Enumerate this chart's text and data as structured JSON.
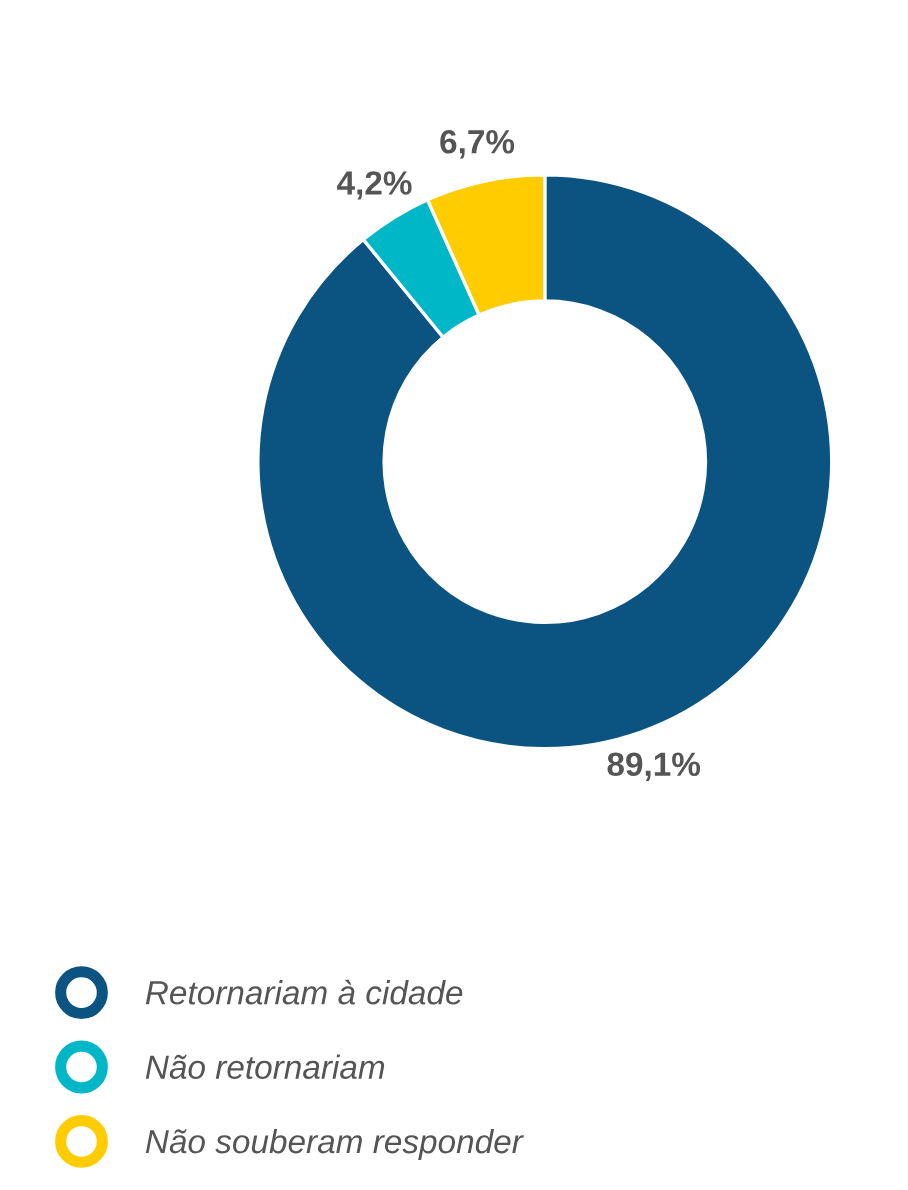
{
  "chart_data": {
    "type": "donut",
    "categories": [
      "Retornariam à cidade",
      "Não retornariam",
      "Não souberam responder"
    ],
    "values": [
      89.1,
      4.2,
      6.7
    ],
    "value_labels": [
      "89,1%",
      "4,2%",
      "6,7%"
    ],
    "colors": [
      "#0b5482",
      "#00b7c7",
      "#ffcc00"
    ],
    "legend": "bottom left"
  }
}
